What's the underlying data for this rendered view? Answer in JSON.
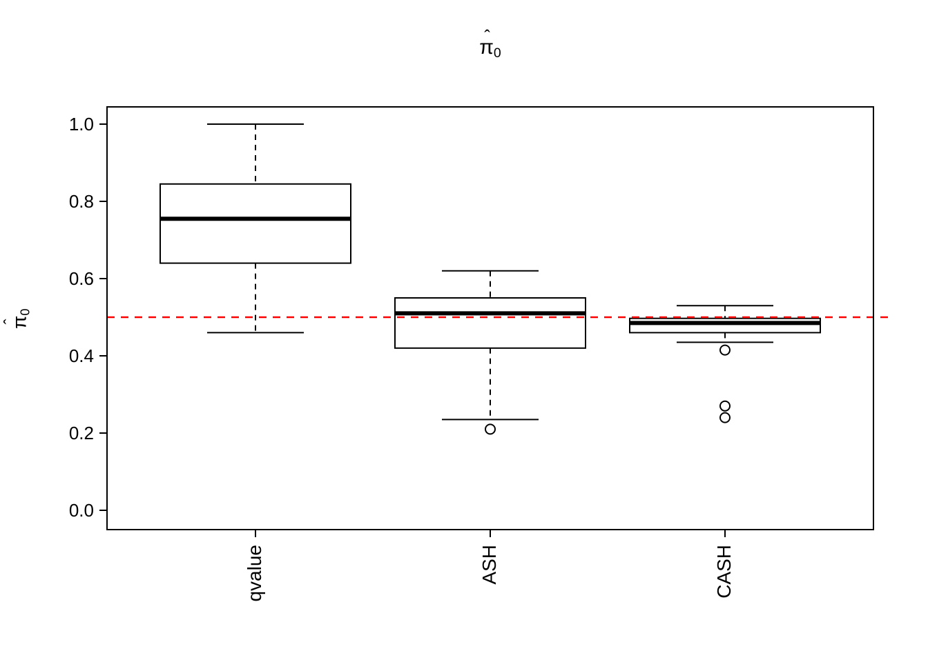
{
  "symbol": {
    "pi": "π",
    "hat": "ˆ",
    "sub": "0"
  },
  "chart_data": {
    "type": "boxplot",
    "title": "π̂0",
    "ylabel": "π̂0",
    "categories": [
      "qvalue",
      "ASH",
      "CASH"
    ],
    "ylim": [
      0.0,
      1.0
    ],
    "yticks": [
      0.0,
      0.2,
      0.4,
      0.6,
      0.8,
      1.0
    ],
    "grid": false,
    "legend": false,
    "reference_line": {
      "y": 0.5,
      "color": "#FF0000",
      "style": "dashed"
    },
    "boxes": [
      {
        "label": "qvalue",
        "whisker_low": 0.46,
        "q1": 0.64,
        "median": 0.755,
        "q3": 0.845,
        "whisker_high": 1.0,
        "outliers": []
      },
      {
        "label": "ASH",
        "whisker_low": 0.235,
        "q1": 0.42,
        "median": 0.51,
        "q3": 0.55,
        "whisker_high": 0.62,
        "outliers": [
          0.21
        ]
      },
      {
        "label": "CASH",
        "whisker_low": 0.435,
        "q1": 0.46,
        "median": 0.485,
        "q3": 0.497,
        "whisker_high": 0.53,
        "outliers": [
          0.415,
          0.27,
          0.24
        ]
      }
    ]
  }
}
